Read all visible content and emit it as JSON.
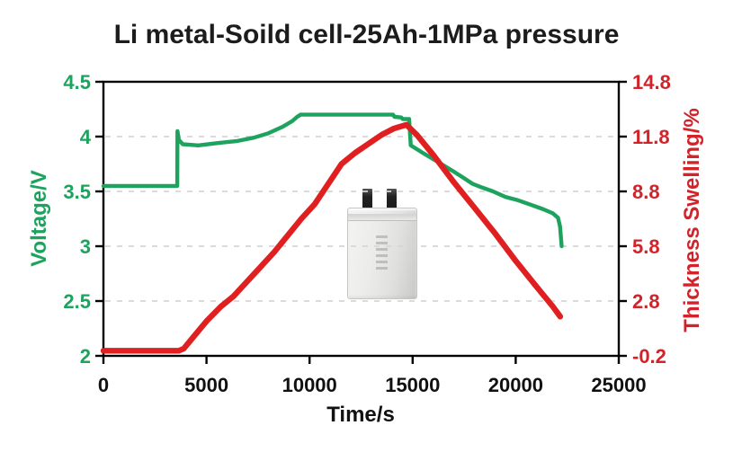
{
  "title": "Li metal-Soild cell-25Ah-1MPa pressure",
  "colors": {
    "voltage_green": "#1ea35f",
    "swelling_red_line": "#e02020",
    "swelling_red_text": "#d2232a",
    "x_tick_text": "#111111",
    "axis_frame": "#000000",
    "gridline": "#d6d6d6",
    "title_text": "#1c1c1c"
  },
  "battery_inset": {
    "icon": "pouch-cell-battery-photo",
    "position": "center of plot"
  },
  "chart_data": {
    "type": "line",
    "title": "Li metal-Soild cell-25Ah-1MPa pressure",
    "xlabel": "Time/s",
    "ylabel_left": "Voltage/V",
    "ylabel_right": "Thickness Swelling/%",
    "xlim": [
      0,
      25000
    ],
    "ylim_left": [
      2,
      4.5
    ],
    "ylim_right": [
      -0.2,
      14.8
    ],
    "xtick_labels": [
      "0",
      "5000",
      "10000",
      "15000",
      "20000",
      "25000"
    ],
    "xticks": [
      0,
      5000,
      10000,
      15000,
      20000,
      25000
    ],
    "ytick_labels_left": [
      "4.5",
      "4",
      "3.5",
      "3",
      "2.5",
      "2"
    ],
    "yticks_left": [
      4.5,
      4,
      3.5,
      3,
      2.5,
      2
    ],
    "ytick_labels_right": [
      "14.8",
      "11.8",
      "8.8",
      "5.8",
      "2.8",
      "-0.2"
    ],
    "yticks_right": [
      14.8,
      11.8,
      8.8,
      5.8,
      2.8,
      -0.2
    ],
    "grid": "horizontal-dashed-at-inner-ticks",
    "legend": "none",
    "series": [
      {
        "name": "Voltage",
        "axis": "left",
        "color": "#1ea35f",
        "points": [
          [
            0,
            3.55
          ],
          [
            3580,
            3.55
          ],
          [
            3590,
            4.05
          ],
          [
            3660,
            3.97
          ],
          [
            3850,
            3.93
          ],
          [
            4600,
            3.92
          ],
          [
            5500,
            3.94
          ],
          [
            6500,
            3.96
          ],
          [
            7300,
            3.99
          ],
          [
            8000,
            4.03
          ],
          [
            8700,
            4.09
          ],
          [
            9150,
            4.14
          ],
          [
            9400,
            4.18
          ],
          [
            9560,
            4.2
          ],
          [
            14050,
            4.2
          ],
          [
            14120,
            4.18
          ],
          [
            14450,
            4.175
          ],
          [
            14520,
            4.16
          ],
          [
            14830,
            4.16
          ],
          [
            14910,
            3.92
          ],
          [
            15500,
            3.85
          ],
          [
            16300,
            3.76
          ],
          [
            17000,
            3.68
          ],
          [
            17500,
            3.62
          ],
          [
            17900,
            3.57
          ],
          [
            18300,
            3.54
          ],
          [
            18900,
            3.5
          ],
          [
            19500,
            3.45
          ],
          [
            20100,
            3.42
          ],
          [
            20700,
            3.38
          ],
          [
            21300,
            3.34
          ],
          [
            21800,
            3.3
          ],
          [
            22050,
            3.26
          ],
          [
            22150,
            3.18
          ],
          [
            22230,
            3.0
          ]
        ]
      },
      {
        "name": "Thickness Swelling",
        "axis": "right",
        "color": "#e02020",
        "points": [
          [
            0,
            0.08
          ],
          [
            3650,
            0.08
          ],
          [
            3900,
            0.2
          ],
          [
            4300,
            0.75
          ],
          [
            5000,
            1.7
          ],
          [
            5700,
            2.5
          ],
          [
            6300,
            3.05
          ],
          [
            7000,
            3.9
          ],
          [
            7650,
            4.7
          ],
          [
            8300,
            5.5
          ],
          [
            8950,
            6.4
          ],
          [
            9600,
            7.3
          ],
          [
            10250,
            8.1
          ],
          [
            10900,
            9.2
          ],
          [
            11550,
            10.3
          ],
          [
            12200,
            10.9
          ],
          [
            12850,
            11.4
          ],
          [
            13500,
            11.9
          ],
          [
            14100,
            12.25
          ],
          [
            14700,
            12.45
          ],
          [
            15200,
            11.9
          ],
          [
            16000,
            10.8
          ],
          [
            17000,
            9.3
          ],
          [
            18000,
            7.9
          ],
          [
            19000,
            6.5
          ],
          [
            20000,
            5.0
          ],
          [
            21000,
            3.6
          ],
          [
            21800,
            2.5
          ],
          [
            22160,
            1.95
          ]
        ]
      }
    ]
  }
}
